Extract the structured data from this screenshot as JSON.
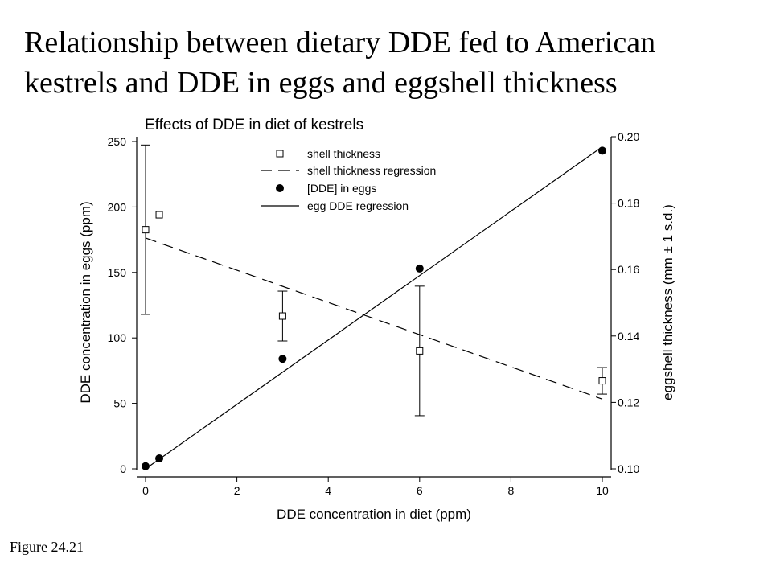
{
  "slide": {
    "title_line1": "Relationship between dietary DDE fed to American",
    "title_line2": "kestrels and DDE in eggs and eggshell thickness",
    "figure_caption": "Figure 24.21"
  },
  "chart_data": {
    "type": "scatter",
    "title": "Effects of DDE in diet of kestrels",
    "xlabel": "DDE concentration in diet (ppm)",
    "ylabel": "DDE concentration in eggs (ppm)",
    "y2label": "eggshell thickness (mm ± 1 s.d.)",
    "xlim": [
      0,
      10
    ],
    "ylim": [
      0,
      250
    ],
    "y2lim": [
      0.1,
      0.2
    ],
    "xticks": [
      "0",
      "2",
      "4",
      "6",
      "8",
      "10"
    ],
    "yticks": [
      "0",
      "50",
      "100",
      "150",
      "200",
      "250"
    ],
    "y2ticks": [
      "0.10",
      "0.12",
      "0.14",
      "0.16",
      "0.18",
      "0.20"
    ],
    "grid": false,
    "legend_placement": "top-center",
    "series": [
      {
        "name": "shell thickness",
        "axis": "right",
        "marker": "open-square",
        "points": [
          {
            "x": 0.0,
            "y": 0.172,
            "err": 0.0255
          },
          {
            "x": 0.3,
            "y": 0.1765
          },
          {
            "x": 3.0,
            "y": 0.146,
            "err": 0.0075
          },
          {
            "x": 6.0,
            "y": 0.1355,
            "err": 0.0195
          },
          {
            "x": 10.0,
            "y": 0.1265,
            "err": 0.004
          }
        ]
      },
      {
        "name": "shell thickness regression",
        "axis": "right",
        "style": "dashed",
        "x": [
          0,
          10
        ],
        "y": [
          0.1695,
          0.121
        ]
      },
      {
        "name": "[DDE] in eggs",
        "axis": "left",
        "marker": "filled-circle",
        "points": [
          {
            "x": 0.0,
            "y": 2
          },
          {
            "x": 0.3,
            "y": 8
          },
          {
            "x": 3.0,
            "y": 84
          },
          {
            "x": 6.0,
            "y": 153
          },
          {
            "x": 10.0,
            "y": 243
          }
        ]
      },
      {
        "name": "egg DDE regression",
        "axis": "left",
        "style": "solid",
        "x": [
          0,
          10
        ],
        "y": [
          0,
          246
        ]
      }
    ]
  }
}
